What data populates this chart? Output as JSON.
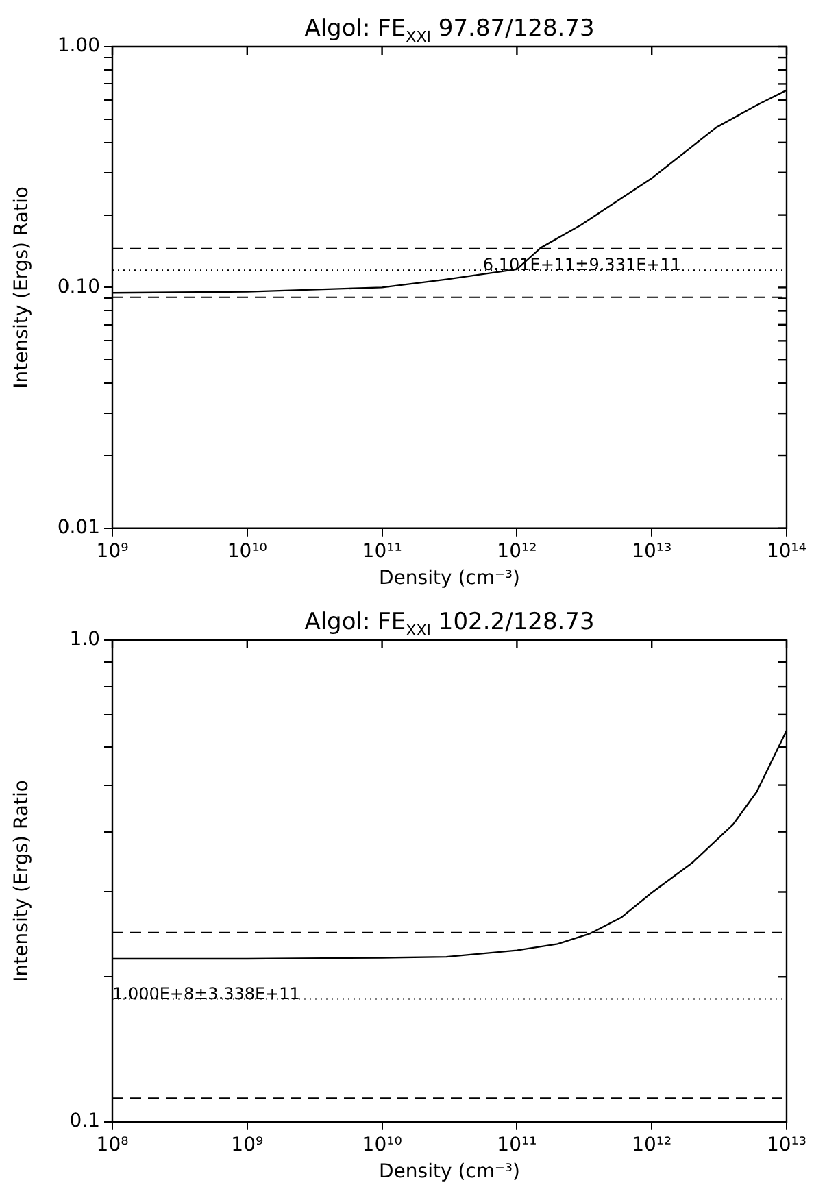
{
  "chart_data": [
    {
      "type": "line",
      "title": "Algol: FE$_{XXI}$ 97.87/128.73",
      "xlabel": "Density (cm⁻³)",
      "ylabel": "Intensity (Ergs) Ratio",
      "log": "xy",
      "grid": false,
      "legend": false,
      "marker": "none",
      "line_style": "solid",
      "x": [
        1000000000.0,
        10000000000.0,
        100000000000.0,
        300000000000.0,
        1000000000000.0,
        1500000000000.0,
        3000000000000.0,
        10000000000000.0,
        30000000000000.0,
        60000000000000.0,
        100000000000000.0
      ],
      "series": [
        {
          "color": "#000000",
          "values": [
            0.095,
            0.096,
            0.1,
            0.108,
            0.119,
            0.146,
            0.182,
            0.284,
            0.461,
            0.571,
            0.659
          ]
        }
      ],
      "xlim": [
        1000000000.0,
        100000000000000.0
      ],
      "xticks": [
        {
          "value": 1000000000.0,
          "label": "10⁹"
        },
        {
          "value": 10000000000.0,
          "label": "10¹⁰"
        },
        {
          "value": 100000000000.0,
          "label": "10¹¹"
        },
        {
          "value": 1000000000000.0,
          "label": "10¹²"
        },
        {
          "value": 10000000000000.0,
          "label": "10¹³"
        },
        {
          "value": 100000000000000.0,
          "label": "10¹⁴"
        }
      ],
      "ylim": [
        0.01,
        1
      ],
      "yticks": [
        {
          "value": 0.01,
          "label": "0.01"
        },
        {
          "value": 0.02,
          "label": null
        },
        {
          "value": 0.03,
          "label": null
        },
        {
          "value": 0.04,
          "label": null
        },
        {
          "value": 0.05,
          "label": null
        },
        {
          "value": 0.06,
          "label": null
        },
        {
          "value": 0.07,
          "label": null
        },
        {
          "value": 0.08,
          "label": null
        },
        {
          "value": 0.09,
          "label": null
        },
        {
          "value": 0.1,
          "label": "0.10"
        },
        {
          "value": 0.2,
          "label": null
        },
        {
          "value": 0.3,
          "label": null
        },
        {
          "value": 0.4,
          "label": null
        },
        {
          "value": 0.5,
          "label": null
        },
        {
          "value": 0.6,
          "label": null
        },
        {
          "value": 0.7,
          "label": null
        },
        {
          "value": 0.8,
          "label": null
        },
        {
          "value": 0.9,
          "label": null
        },
        {
          "value": 1,
          "label": "1.00"
        }
      ],
      "ref_lines": [
        {
          "axis": "y",
          "value": 0.145,
          "color": "#000000",
          "line_style": "dashed"
        },
        {
          "axis": "y",
          "value": 0.118,
          "color": "#000000",
          "line_style": "dotted"
        },
        {
          "axis": "y",
          "value": 0.091,
          "color": "#000000",
          "line_style": "dashed"
        }
      ],
      "annotations": [
        {
          "text": "6.101E+11±9.331E+11",
          "x": 560000000000.0,
          "y": 0.118
        }
      ]
    },
    {
      "type": "line",
      "title": "Algol: FE$_{XXI}$ 102.2/128.73",
      "xlabel": "Density (cm⁻³)",
      "ylabel": "Intensity (Ergs) Ratio",
      "log": "xy",
      "grid": false,
      "legend": false,
      "marker": "none",
      "line_style": "solid",
      "x": [
        100000000.0,
        1000000000.0,
        10000000000.0,
        30000000000.0,
        100000000000.0,
        200000000000.0,
        350000000000.0,
        600000000000.0,
        1000000000000.0,
        2000000000000.0,
        4000000000000.0,
        6000000000000.0,
        10000000000000.0
      ],
      "series": [
        {
          "color": "#000000",
          "values": [
            0.218,
            0.218,
            0.219,
            0.22,
            0.227,
            0.234,
            0.246,
            0.266,
            0.299,
            0.345,
            0.414,
            0.484,
            0.649
          ]
        }
      ],
      "xlim": [
        100000000.0,
        10000000000000.0
      ],
      "xticks": [
        {
          "value": 100000000.0,
          "label": "10⁸"
        },
        {
          "value": 1000000000.0,
          "label": "10⁹"
        },
        {
          "value": 10000000000.0,
          "label": "10¹⁰"
        },
        {
          "value": 100000000000.0,
          "label": "10¹¹"
        },
        {
          "value": 1000000000000.0,
          "label": "10¹²"
        },
        {
          "value": 10000000000000.0,
          "label": "10¹³"
        }
      ],
      "ylim": [
        0.1,
        1
      ],
      "yticks": [
        {
          "value": 0.1,
          "label": "0.1"
        },
        {
          "value": 0.2,
          "label": null
        },
        {
          "value": 0.3,
          "label": null
        },
        {
          "value": 0.4,
          "label": null
        },
        {
          "value": 0.5,
          "label": null
        },
        {
          "value": 0.6,
          "label": null
        },
        {
          "value": 0.7,
          "label": null
        },
        {
          "value": 0.8,
          "label": null
        },
        {
          "value": 0.9,
          "label": null
        },
        {
          "value": 1,
          "label": "1.0"
        }
      ],
      "ref_lines": [
        {
          "axis": "y",
          "value": 0.247,
          "color": "#000000",
          "line_style": "dashed"
        },
        {
          "axis": "y",
          "value": 0.18,
          "color": "#000000",
          "line_style": "dotted"
        },
        {
          "axis": "y",
          "value": 0.112,
          "color": "#000000",
          "line_style": "dashed"
        }
      ],
      "annotations": [
        {
          "text": "1.000E+8±3.338E+11",
          "x": 100000000.0,
          "y": 0.18
        }
      ]
    }
  ]
}
